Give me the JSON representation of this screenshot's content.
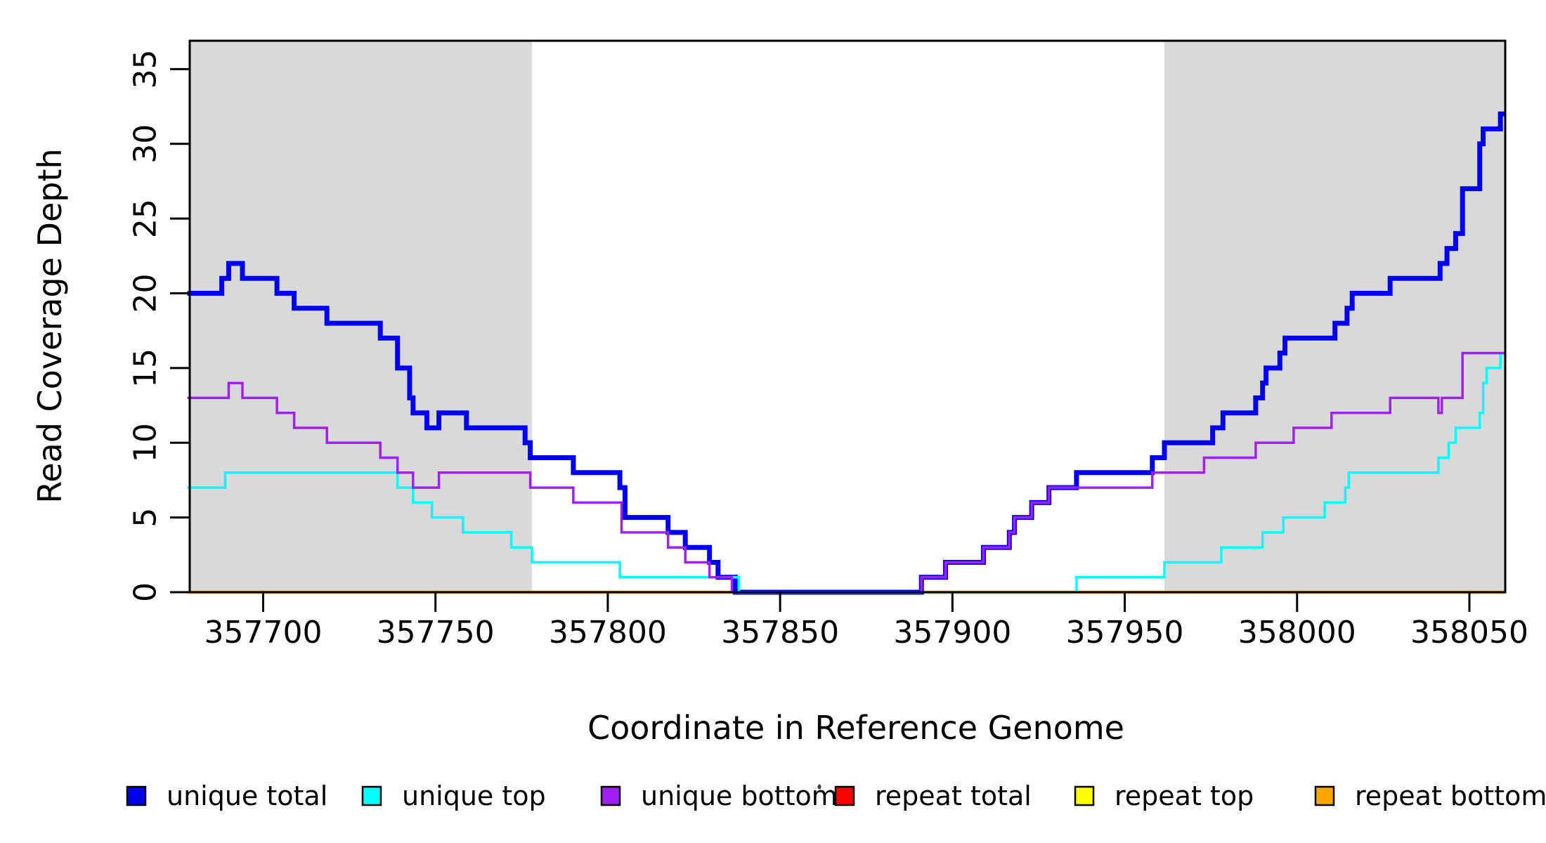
{
  "chart_data": {
    "type": "line",
    "subtype": "step-after",
    "title": "",
    "xlabel": "Coordinate in Reference Genome",
    "ylabel": "Read Coverage Depth",
    "xlim": [
      357678.7,
      358060.4
    ],
    "ylim": [
      0,
      36.9
    ],
    "xticks": [
      357700,
      357750,
      357800,
      357850,
      357900,
      357950,
      358000,
      358050
    ],
    "yticks": [
      0,
      5,
      10,
      15,
      20,
      25,
      30,
      35
    ],
    "grid": false,
    "frame_color": "#000000",
    "shaded_regions": [
      {
        "x0": 357678.7,
        "x1": 357778,
        "color": "#D9D9D9"
      },
      {
        "x0": 357961.5,
        "x1": 358060.4,
        "color": "#D9D9D9"
      }
    ],
    "legend_position": "bottom",
    "series": [
      {
        "name": "unique total",
        "color": "#0000EE",
        "line_width": 7,
        "steps": [
          [
            357678,
            20
          ],
          [
            357688,
            21
          ],
          [
            357690,
            22
          ],
          [
            357694,
            21
          ],
          [
            357704,
            20
          ],
          [
            357709,
            19
          ],
          [
            357718.5,
            18
          ],
          [
            357734,
            17
          ],
          [
            357739,
            15
          ],
          [
            357742.5,
            13
          ],
          [
            357743.5,
            12
          ],
          [
            357747.5,
            11
          ],
          [
            357751,
            12
          ],
          [
            357759,
            11
          ],
          [
            357776,
            10
          ],
          [
            357777.5,
            9
          ],
          [
            357790,
            8
          ],
          [
            357803.5,
            7
          ],
          [
            357805,
            5
          ],
          [
            357817.5,
            4
          ],
          [
            357822.5,
            3
          ],
          [
            357829.5,
            2
          ],
          [
            357832,
            1
          ],
          [
            357837,
            0
          ],
          [
            357891,
            1
          ],
          [
            357898,
            2
          ],
          [
            357909,
            3
          ],
          [
            357916.5,
            4
          ],
          [
            357918,
            5
          ],
          [
            357923,
            6
          ],
          [
            357928,
            7
          ],
          [
            357936,
            8
          ],
          [
            357958,
            9
          ],
          [
            357961.5,
            10
          ],
          [
            357975.5,
            11
          ],
          [
            357978.5,
            12
          ],
          [
            357988,
            13
          ],
          [
            357990,
            14
          ],
          [
            357991,
            15
          ],
          [
            357995,
            16
          ],
          [
            357996.5,
            17
          ],
          [
            358011,
            18
          ],
          [
            358014.5,
            19
          ],
          [
            358016,
            20
          ],
          [
            358027,
            21
          ],
          [
            358041.5,
            22
          ],
          [
            358043.5,
            23
          ],
          [
            358046,
            24
          ],
          [
            358048,
            27
          ],
          [
            358053,
            30
          ],
          [
            358054,
            31
          ],
          [
            358059,
            32
          ]
        ]
      },
      {
        "name": "unique top",
        "color": "#00FFFF",
        "line_width": 3.5,
        "steps": [
          [
            357678,
            7
          ],
          [
            357689,
            8
          ],
          [
            357739,
            7
          ],
          [
            357743.5,
            6
          ],
          [
            357749,
            5
          ],
          [
            357758,
            4
          ],
          [
            357772,
            3
          ],
          [
            357778,
            2
          ],
          [
            357803.5,
            1
          ],
          [
            357838,
            0
          ],
          [
            357936,
            1
          ],
          [
            357961.5,
            2
          ],
          [
            357978,
            3
          ],
          [
            357990,
            4
          ],
          [
            357996,
            5
          ],
          [
            358008,
            6
          ],
          [
            358014,
            7
          ],
          [
            358015,
            8
          ],
          [
            358041,
            9
          ],
          [
            358044,
            10
          ],
          [
            358046,
            11
          ],
          [
            358053,
            12
          ],
          [
            358054,
            14
          ],
          [
            358055,
            15
          ],
          [
            358059,
            16
          ]
        ]
      },
      {
        "name": "unique bottom",
        "color": "#A020F0",
        "line_width": 3.5,
        "steps": [
          [
            357678,
            13
          ],
          [
            357690,
            14
          ],
          [
            357694,
            13
          ],
          [
            357704,
            12
          ],
          [
            357709,
            11
          ],
          [
            357718.5,
            10
          ],
          [
            357734,
            9
          ],
          [
            357739,
            8
          ],
          [
            357743.5,
            7
          ],
          [
            357751,
            8
          ],
          [
            357777.5,
            7
          ],
          [
            357790,
            6
          ],
          [
            357804,
            4
          ],
          [
            357817.5,
            3
          ],
          [
            357822.5,
            2
          ],
          [
            357829.5,
            1
          ],
          [
            357836,
            0
          ],
          [
            357891,
            1
          ],
          [
            357898,
            2
          ],
          [
            357909,
            3
          ],
          [
            357916.5,
            4
          ],
          [
            357918,
            5
          ],
          [
            357923,
            6
          ],
          [
            357928,
            7
          ],
          [
            357958,
            8
          ],
          [
            357973,
            9
          ],
          [
            357988,
            10
          ],
          [
            357999,
            11
          ],
          [
            358010,
            12
          ],
          [
            358027,
            13
          ],
          [
            358041,
            12
          ],
          [
            358042,
            13
          ],
          [
            358048,
            16
          ]
        ]
      },
      {
        "name": "repeat total",
        "color": "#FF0000",
        "line_width": 3.5,
        "steps": [
          [
            357678,
            0
          ]
        ]
      },
      {
        "name": "repeat top",
        "color": "#FFFF00",
        "line_width": 3.5,
        "steps": [
          [
            357678,
            0
          ]
        ]
      },
      {
        "name": "repeat bottom",
        "color": "#FFA500",
        "line_width": 4.5,
        "steps": [
          [
            357678,
            0
          ]
        ]
      }
    ]
  },
  "legend": {
    "items": [
      {
        "label": "unique total",
        "color": "#0000EE"
      },
      {
        "label": "unique top",
        "color": "#00FFFF"
      },
      {
        "label": "unique bottom",
        "color": "#A020F0"
      },
      {
        "label": "repeat total",
        "color": "#FF0000"
      },
      {
        "label": "repeat top",
        "color": "#FFFF00"
      },
      {
        "label": "repeat bottom",
        "color": "#FFA500"
      }
    ]
  }
}
